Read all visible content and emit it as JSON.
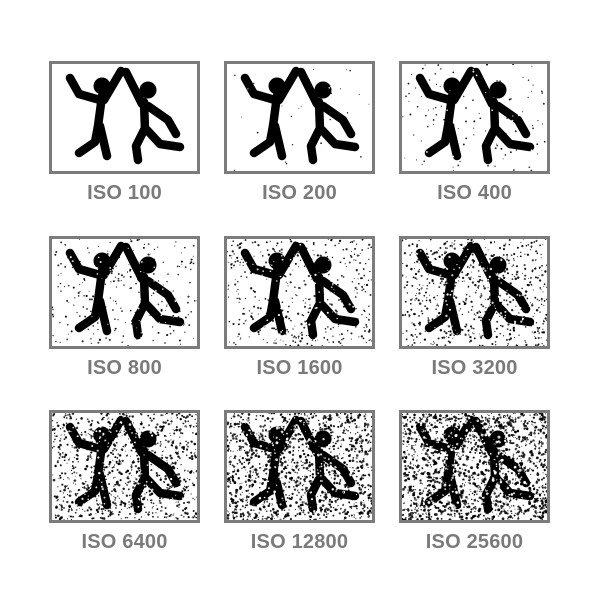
{
  "panels": [
    {
      "label": "ISO 100",
      "noise_level": 0
    },
    {
      "label": "ISO 200",
      "noise_level": 1
    },
    {
      "label": "ISO 400",
      "noise_level": 2
    },
    {
      "label": "ISO 800",
      "noise_level": 3
    },
    {
      "label": "ISO 1600",
      "noise_level": 4
    },
    {
      "label": "ISO 3200",
      "noise_level": 5
    },
    {
      "label": "ISO 6400",
      "noise_level": 6
    },
    {
      "label": "ISO 12800",
      "noise_level": 7
    },
    {
      "label": "ISO 25600",
      "noise_level": 8
    }
  ],
  "colors": {
    "frame": "#7c7c7c",
    "label": "#7a7a7a",
    "figure": "#000000",
    "background": "#ffffff"
  },
  "icon": "two-people-high-five-icon"
}
